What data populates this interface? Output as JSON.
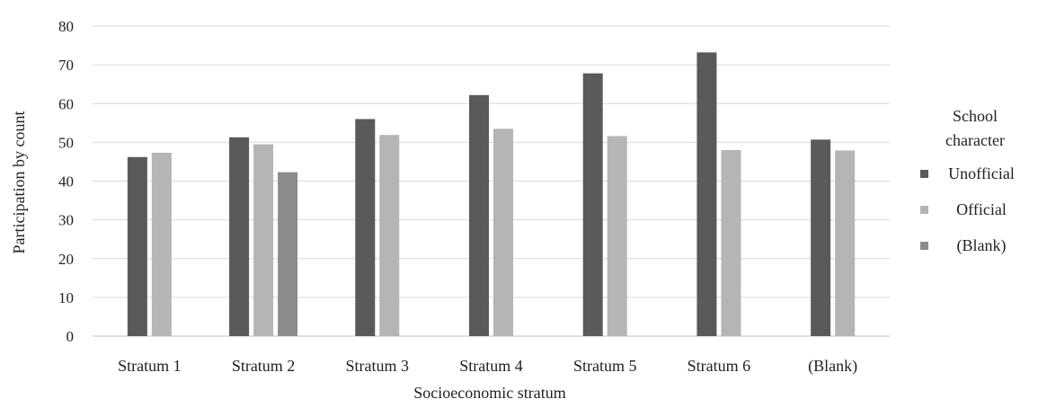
{
  "chart_data": {
    "type": "bar",
    "categories": [
      "Stratum 1",
      "Stratum 2",
      "Stratum 3",
      "Stratum 4",
      "Stratum 5",
      "Stratum 6",
      "(Blank)"
    ],
    "series": [
      {
        "name": "Unofficial",
        "color": "#5a5a5a",
        "values": [
          46.2,
          51.3,
          56.0,
          62.2,
          67.8,
          73.2,
          50.7
        ]
      },
      {
        "name": "Official",
        "color": "#b5b5b5",
        "values": [
          47.3,
          49.5,
          51.9,
          53.5,
          51.6,
          48.0,
          47.9
        ]
      },
      {
        "name": "(Blank)",
        "color": "#8c8c8c",
        "values": [
          null,
          42.3,
          null,
          null,
          null,
          null,
          null
        ]
      }
    ],
    "title": "",
    "xlabel": "Socioeconomic stratum",
    "ylabel": "Participation by count",
    "ylim": [
      0,
      80
    ],
    "yticks": [
      0,
      10,
      20,
      30,
      40,
      50,
      60,
      70,
      80
    ],
    "grid": true,
    "legend": {
      "title_line1": "School",
      "title_line2": "character",
      "placement": "right"
    }
  }
}
